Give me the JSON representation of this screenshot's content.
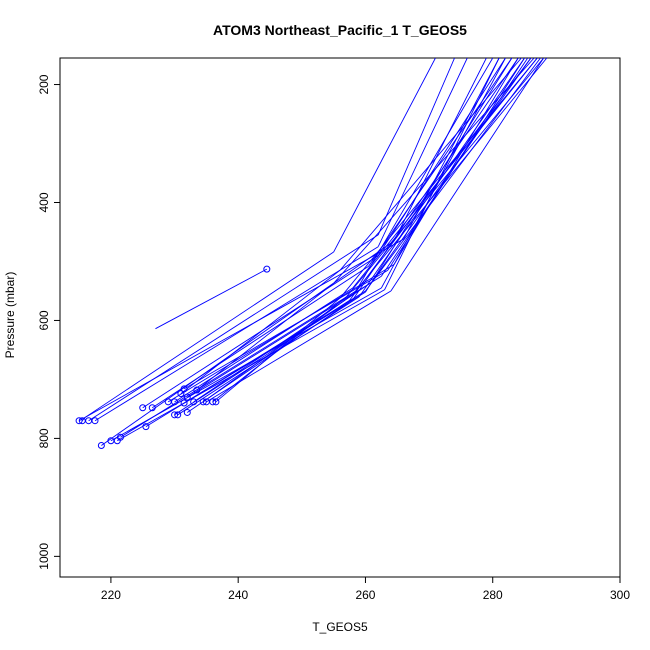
{
  "chart_data": {
    "type": "line",
    "title": "ATOM3 Northeast_Pacific_1 T_GEOS5",
    "xlabel": "T_GEOS5",
    "ylabel": "Pressure (mbar)",
    "xlim": [
      212,
      300
    ],
    "ylim": [
      1035,
      155
    ],
    "y_reversed": true,
    "xticks": [
      220,
      240,
      260,
      280,
      300
    ],
    "yticks": [
      200,
      400,
      600,
      800,
      1000
    ],
    "grid": false,
    "legend": "none",
    "color": "#0000ff",
    "series": [
      {
        "points": [
          [
            244.5,
            513
          ],
          [
            227,
            614
          ]
        ],
        "marker_index": 0
      },
      {
        "points": [
          [
            255,
            484
          ],
          [
            216,
            764
          ],
          [
            215.5,
            770
          ]
        ],
        "marker_index": 2
      },
      {
        "points": [
          [
            262,
            455
          ],
          [
            216.5,
            770
          ]
        ],
        "marker_index": 1
      },
      {
        "points": [
          [
            262,
            475
          ],
          [
            217.5,
            770
          ]
        ],
        "marker_index": 1
      },
      {
        "points": [
          [
            264.5,
            465
          ],
          [
            218.5,
            812
          ]
        ],
        "marker_index": 1
      },
      {
        "points": [
          [
            266,
            462
          ],
          [
            215,
            770
          ]
        ],
        "marker_index": 1
      },
      {
        "points": [
          [
            262,
            490
          ],
          [
            225,
            748
          ]
        ],
        "marker_index": 1
      },
      {
        "points": [
          [
            260.5,
            508
          ],
          [
            226.5,
            748
          ]
        ],
        "marker_index": 1
      },
      {
        "points": [
          [
            264.5,
            505
          ],
          [
            229,
            738
          ]
        ],
        "marker_index": 1
      },
      {
        "points": [
          [
            256,
            515
          ],
          [
            231,
            724
          ]
        ],
        "marker_index": 1
      },
      {
        "points": [
          [
            263.5,
            515
          ],
          [
            231.5,
            716
          ]
        ],
        "marker_index": 1
      },
      {
        "points": [
          [
            262.5,
            525
          ],
          [
            232,
            730
          ]
        ],
        "marker_index": 1
      },
      {
        "points": [
          [
            261,
            535
          ],
          [
            233,
            738
          ]
        ],
        "marker_index": 1
      },
      {
        "points": [
          [
            255,
            537
          ],
          [
            233.5,
            718
          ]
        ],
        "marker_index": 1
      },
      {
        "points": [
          [
            258,
            545
          ],
          [
            230,
            738
          ]
        ],
        "marker_index": 1
      },
      {
        "points": [
          [
            260,
            550
          ],
          [
            231.5,
            740
          ]
        ],
        "marker_index": 1
      },
      {
        "points": [
          [
            264,
            550
          ],
          [
            235,
            738
          ]
        ],
        "marker_index": 1
      },
      {
        "points": [
          [
            258,
            556
          ],
          [
            234.5,
            738
          ]
        ],
        "marker_index": 1
      },
      {
        "points": [
          [
            257,
            560
          ],
          [
            236,
            738
          ]
        ],
        "marker_index": 1
      },
      {
        "points": [
          [
            256,
            562
          ],
          [
            236.5,
            738
          ]
        ],
        "marker_index": 1
      },
      {
        "points": [
          [
            257.5,
            566
          ],
          [
            230,
            760
          ]
        ],
        "marker_index": 1
      },
      {
        "points": [
          [
            259,
            560
          ],
          [
            230.5,
            760
          ]
        ],
        "marker_index": 1
      },
      {
        "points": [
          [
            258,
            565
          ],
          [
            232,
            756
          ]
        ],
        "marker_index": 1
      },
      {
        "points": [
          [
            260,
            552
          ],
          [
            225.5,
            780
          ]
        ],
        "marker_index": 1
      },
      {
        "points": [
          [
            262.5,
            545
          ],
          [
            220,
            804
          ]
        ],
        "marker_index": 1
      },
      {
        "points": [
          [
            263,
            548
          ],
          [
            221,
            804
          ]
        ],
        "marker_index": 1
      },
      {
        "points": [
          [
            258.5,
            550
          ],
          [
            221.5,
            798
          ]
        ],
        "marker_index": 1
      }
    ],
    "upper_lines": [
      {
        "points": [
          [
            271,
            155
          ],
          [
            255,
            484
          ]
        ]
      },
      {
        "points": [
          [
            274,
            155
          ],
          [
            262,
            455
          ]
        ]
      },
      {
        "points": [
          [
            276,
            155
          ],
          [
            262,
            475
          ]
        ]
      },
      {
        "points": [
          [
            279,
            155
          ],
          [
            264.5,
            465
          ]
        ]
      },
      {
        "points": [
          [
            281,
            155
          ],
          [
            266,
            462
          ]
        ]
      },
      {
        "points": [
          [
            282,
            155
          ],
          [
            262,
            490
          ]
        ]
      },
      {
        "points": [
          [
            283,
            155
          ],
          [
            260.5,
            508
          ]
        ]
      },
      {
        "points": [
          [
            284,
            155
          ],
          [
            264.5,
            505
          ]
        ]
      },
      {
        "points": [
          [
            284.5,
            155
          ],
          [
            256,
            515
          ]
        ]
      },
      {
        "points": [
          [
            285,
            155
          ],
          [
            263.5,
            515
          ]
        ]
      },
      {
        "points": [
          [
            285.5,
            155
          ],
          [
            262.5,
            525
          ]
        ]
      },
      {
        "points": [
          [
            286,
            155
          ],
          [
            261,
            535
          ]
        ]
      },
      {
        "points": [
          [
            286.5,
            155
          ],
          [
            255,
            537
          ]
        ]
      },
      {
        "points": [
          [
            287,
            155
          ],
          [
            258,
            545
          ]
        ]
      },
      {
        "points": [
          [
            287.5,
            155
          ],
          [
            260,
            550
          ]
        ]
      },
      {
        "points": [
          [
            288,
            155
          ],
          [
            264,
            550
          ]
        ]
      },
      {
        "points": [
          [
            288.5,
            155
          ],
          [
            258,
            556
          ]
        ]
      },
      {
        "points": [
          [
            288,
            155
          ],
          [
            257,
            560
          ]
        ]
      },
      {
        "points": [
          [
            287,
            155
          ],
          [
            256,
            562
          ]
        ]
      },
      {
        "points": [
          [
            286,
            155
          ],
          [
            257.5,
            566
          ]
        ]
      },
      {
        "points": [
          [
            285,
            155
          ],
          [
            259,
            560
          ]
        ]
      },
      {
        "points": [
          [
            284,
            155
          ],
          [
            258,
            565
          ]
        ]
      },
      {
        "points": [
          [
            283,
            155
          ],
          [
            260,
            552
          ]
        ]
      },
      {
        "points": [
          [
            282,
            155
          ],
          [
            262.5,
            545
          ]
        ]
      },
      {
        "points": [
          [
            281,
            155
          ],
          [
            263,
            548
          ]
        ]
      },
      {
        "points": [
          [
            280,
            155
          ],
          [
            258.5,
            550
          ]
        ]
      }
    ]
  }
}
